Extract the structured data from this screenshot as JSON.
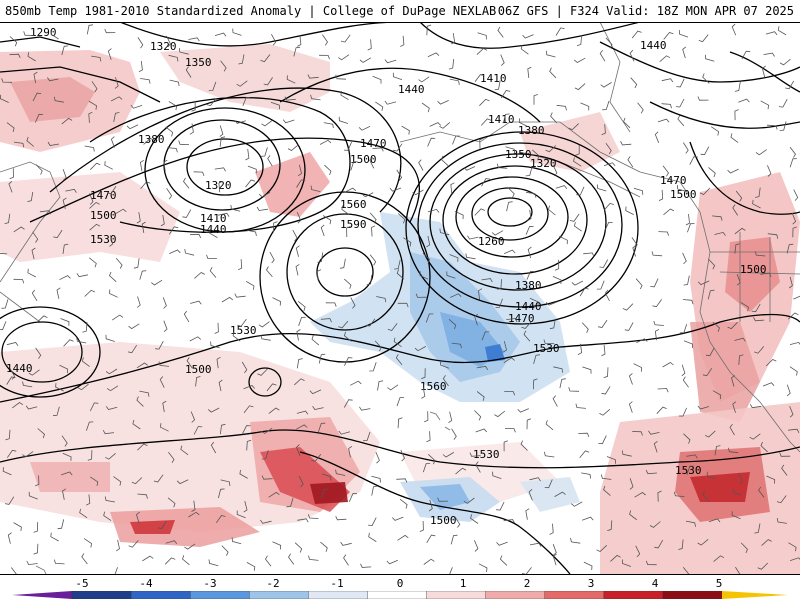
{
  "title": {
    "left": "850mb Temp 1981-2010 Standardized Anomaly | College of DuPage NEXLAB",
    "right": "06Z GFS | F324 Valid: 18Z MON APR 07 2025"
  },
  "contour_labels": [
    "1290",
    "1320",
    "1350",
    "1380",
    "1410",
    "1440",
    "1470",
    "1500",
    "1530",
    "1560",
    "1590",
    "1260"
  ],
  "colorbar": {
    "ticks": [
      "-5",
      "-4",
      "-3",
      "-2",
      "-1",
      "0",
      "1",
      "2",
      "3",
      "4",
      "5"
    ],
    "colors": [
      "#6a1f9a",
      "#1f3f8a",
      "#2f66c6",
      "#5a97de",
      "#9fc4ea",
      "#dfe8f3",
      "#ffffff",
      "#f7dada",
      "#f0aaaa",
      "#e46a6a",
      "#c8202a",
      "#8c0f18",
      "#f5c400"
    ]
  }
}
